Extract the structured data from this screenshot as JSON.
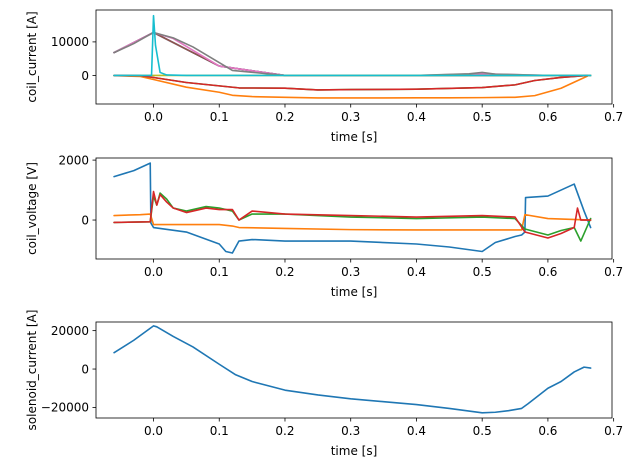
{
  "chart_data": [
    {
      "type": "line",
      "xlabel": "time [s]",
      "ylabel": "coil_current [A]",
      "xlim": [
        -0.0875,
        0.6975
      ],
      "ylim": [
        -8500,
        19500
      ],
      "xticks": [
        0.0,
        0.1,
        0.2,
        0.3,
        0.4,
        0.5,
        0.6,
        0.7
      ],
      "xtick_labels": [
        "0.0",
        "0.1",
        "0.2",
        "0.3",
        "0.4",
        "0.5",
        "0.6",
        "0.7"
      ],
      "yticks": [
        0,
        10000
      ],
      "ytick_labels": [
        "0",
        "10000"
      ],
      "grid": false,
      "series": [
        {
          "color": "#1f77b4",
          "x": [
            -0.06,
            0.0,
            0.1,
            0.2,
            0.3,
            0.4,
            0.5,
            0.6,
            0.665
          ],
          "y": [
            6800,
            12800,
            2800,
            0,
            0,
            0,
            0,
            0,
            0
          ]
        },
        {
          "color": "#9467bd",
          "x": [
            -0.06,
            0.0,
            0.1,
            0.2,
            0.3,
            0.4,
            0.5,
            0.6,
            0.665
          ],
          "y": [
            6800,
            12800,
            2800,
            0,
            0,
            0,
            0,
            0,
            0
          ]
        },
        {
          "color": "#8c564b",
          "x": [
            -0.06,
            0.0,
            0.1,
            0.2,
            0.3,
            0.4,
            0.5,
            0.6,
            0.665
          ],
          "y": [
            6800,
            12800,
            2800,
            0,
            0,
            0,
            0,
            0,
            0
          ]
        },
        {
          "color": "#e377c2",
          "x": [
            -0.06,
            0.0,
            0.03,
            0.1,
            0.2,
            0.3,
            0.4,
            0.5,
            0.6,
            0.665
          ],
          "y": [
            6800,
            12800,
            11000,
            2800,
            0,
            0,
            0,
            500,
            0,
            0
          ]
        },
        {
          "color": "#7f7f7f",
          "x": [
            -0.06,
            -0.03,
            0.0,
            0.03,
            0.06,
            0.09,
            0.12,
            0.2,
            0.3,
            0.4,
            0.48,
            0.5,
            0.52,
            0.6,
            0.665
          ],
          "y": [
            6800,
            9500,
            12800,
            11200,
            8500,
            5000,
            1500,
            0,
            0,
            0,
            500,
            900,
            400,
            0,
            0
          ]
        },
        {
          "color": "#bcbd22",
          "x": [
            -0.06,
            0.0,
            0.1,
            0.2,
            0.3,
            0.4,
            0.5,
            0.6,
            0.665
          ],
          "y": [
            0,
            0,
            0,
            0,
            0,
            0,
            0,
            0,
            0
          ]
        },
        {
          "color": "#ff7f0e",
          "x": [
            -0.06,
            -0.02,
            0.0,
            0.05,
            0.1,
            0.12,
            0.15,
            0.2,
            0.25,
            0.3,
            0.35,
            0.4,
            0.45,
            0.5,
            0.55,
            0.58,
            0.62,
            0.66
          ],
          "y": [
            -50,
            -300,
            -1200,
            -3500,
            -5000,
            -5900,
            -6300,
            -6500,
            -6700,
            -6700,
            -6700,
            -6650,
            -6650,
            -6600,
            -6500,
            -6000,
            -3800,
            -200
          ]
        },
        {
          "color": "#2ca02c",
          "x": [
            -0.06,
            -0.02,
            0.0,
            0.05,
            0.1,
            0.13,
            0.2,
            0.25,
            0.3,
            0.4,
            0.5,
            0.55,
            0.58,
            0.62,
            0.66
          ],
          "y": [
            0,
            -50,
            -600,
            -2100,
            -3100,
            -3700,
            -3800,
            -4300,
            -4200,
            -4100,
            -3600,
            -2800,
            -1500,
            -600,
            0
          ]
        },
        {
          "color": "#d62728",
          "x": [
            -0.06,
            -0.02,
            0.0,
            0.05,
            0.1,
            0.13,
            0.2,
            0.25,
            0.3,
            0.4,
            0.5,
            0.55,
            0.58,
            0.62,
            0.66
          ],
          "y": [
            0,
            -50,
            -600,
            -2100,
            -3100,
            -3700,
            -3800,
            -4300,
            -4200,
            -4100,
            -3600,
            -2800,
            -1500,
            -600,
            0
          ]
        },
        {
          "color": "#17becf",
          "x": [
            -0.06,
            -0.003,
            0.0,
            0.003,
            0.01,
            0.02,
            0.05,
            0.1,
            0.2,
            0.3,
            0.4,
            0.5,
            0.6,
            0.665
          ],
          "y": [
            0,
            0,
            17800,
            9000,
            900,
            150,
            0,
            0,
            0,
            0,
            0,
            0,
            0,
            0
          ]
        }
      ]
    },
    {
      "type": "line",
      "xlabel": "time [s]",
      "ylabel": "coil_voltage [V]",
      "xlim": [
        -0.0875,
        0.6975
      ],
      "ylim": [
        -1300,
        2070
      ],
      "xticks": [
        0.0,
        0.1,
        0.2,
        0.3,
        0.4,
        0.5,
        0.6,
        0.7
      ],
      "xtick_labels": [
        "0.0",
        "0.1",
        "0.2",
        "0.3",
        "0.4",
        "0.5",
        "0.6",
        "0.7"
      ],
      "yticks": [
        0,
        2000
      ],
      "ytick_labels": [
        "0",
        "2000"
      ],
      "grid": false,
      "series": [
        {
          "color": "#1f77b4",
          "x": [
            -0.06,
            -0.03,
            -0.005,
            -0.004,
            0.0,
            0.05,
            0.1,
            0.11,
            0.12,
            0.13,
            0.15,
            0.2,
            0.3,
            0.4,
            0.45,
            0.5,
            0.52,
            0.55,
            0.56,
            0.565,
            0.566,
            0.6,
            0.64,
            0.655,
            0.665
          ],
          "y": [
            1450,
            1650,
            1900,
            -100,
            -250,
            -400,
            -800,
            -1050,
            -1100,
            -700,
            -650,
            -700,
            -700,
            -800,
            -900,
            -1050,
            -750,
            -550,
            -500,
            -400,
            750,
            800,
            1200,
            300,
            -250
          ]
        },
        {
          "color": "#ff7f0e",
          "x": [
            -0.06,
            -0.02,
            -0.005,
            0.0,
            0.05,
            0.1,
            0.12,
            0.13,
            0.2,
            0.3,
            0.4,
            0.5,
            0.56,
            0.565,
            0.6,
            0.665
          ],
          "y": [
            150,
            180,
            200,
            -150,
            -150,
            -150,
            -200,
            -250,
            -280,
            -320,
            -330,
            -330,
            -330,
            180,
            50,
            0
          ]
        },
        {
          "color": "#2ca02c",
          "x": [
            -0.06,
            -0.005,
            0.0,
            0.005,
            0.01,
            0.02,
            0.03,
            0.05,
            0.08,
            0.1,
            0.12,
            0.13,
            0.15,
            0.2,
            0.3,
            0.4,
            0.5,
            0.55,
            0.565,
            0.6,
            0.62,
            0.64,
            0.65,
            0.665
          ],
          "y": [
            -80,
            -60,
            800,
            500,
            900,
            700,
            400,
            300,
            450,
            400,
            300,
            0,
            200,
            200,
            100,
            50,
            100,
            50,
            -300,
            -500,
            -350,
            -250,
            -700,
            50
          ]
        },
        {
          "color": "#d62728",
          "x": [
            -0.06,
            -0.005,
            0.0,
            0.005,
            0.01,
            0.02,
            0.03,
            0.05,
            0.08,
            0.1,
            0.12,
            0.13,
            0.15,
            0.2,
            0.3,
            0.4,
            0.5,
            0.55,
            0.565,
            0.6,
            0.62,
            0.64,
            0.645,
            0.65,
            0.665
          ],
          "y": [
            -80,
            -60,
            950,
            500,
            850,
            600,
            400,
            250,
            400,
            350,
            350,
            0,
            300,
            200,
            150,
            100,
            150,
            100,
            -400,
            -600,
            -450,
            -250,
            400,
            0,
            0
          ]
        }
      ]
    },
    {
      "type": "line",
      "xlabel": "time [s]",
      "ylabel": "solenoid_current [A]",
      "xlim": [
        -0.0875,
        0.6975
      ],
      "ylim": [
        -25500,
        24500
      ],
      "xticks": [
        0.0,
        0.1,
        0.2,
        0.3,
        0.4,
        0.5,
        0.6,
        0.7
      ],
      "xtick_labels": [
        "0.0",
        "0.1",
        "0.2",
        "0.3",
        "0.4",
        "0.5",
        "0.6",
        "0.7"
      ],
      "yticks": [
        -20000,
        0,
        20000
      ],
      "ytick_labels": [
        "−20000",
        "0",
        "20000"
      ],
      "grid": false,
      "series": [
        {
          "color": "#1f77b4",
          "x": [
            -0.06,
            -0.03,
            0.0,
            0.005,
            0.03,
            0.06,
            0.1,
            0.125,
            0.15,
            0.2,
            0.25,
            0.3,
            0.35,
            0.4,
            0.45,
            0.5,
            0.52,
            0.54,
            0.56,
            0.57,
            0.6,
            0.62,
            0.64,
            0.655,
            0.665
          ],
          "y": [
            8500,
            15000,
            22500,
            22000,
            17000,
            11500,
            2500,
            -3000,
            -6500,
            -11000,
            -13500,
            -15500,
            -17000,
            -18500,
            -20500,
            -22800,
            -22500,
            -21700,
            -20500,
            -18000,
            -10000,
            -6500,
            -1500,
            1000,
            500
          ]
        }
      ]
    }
  ]
}
